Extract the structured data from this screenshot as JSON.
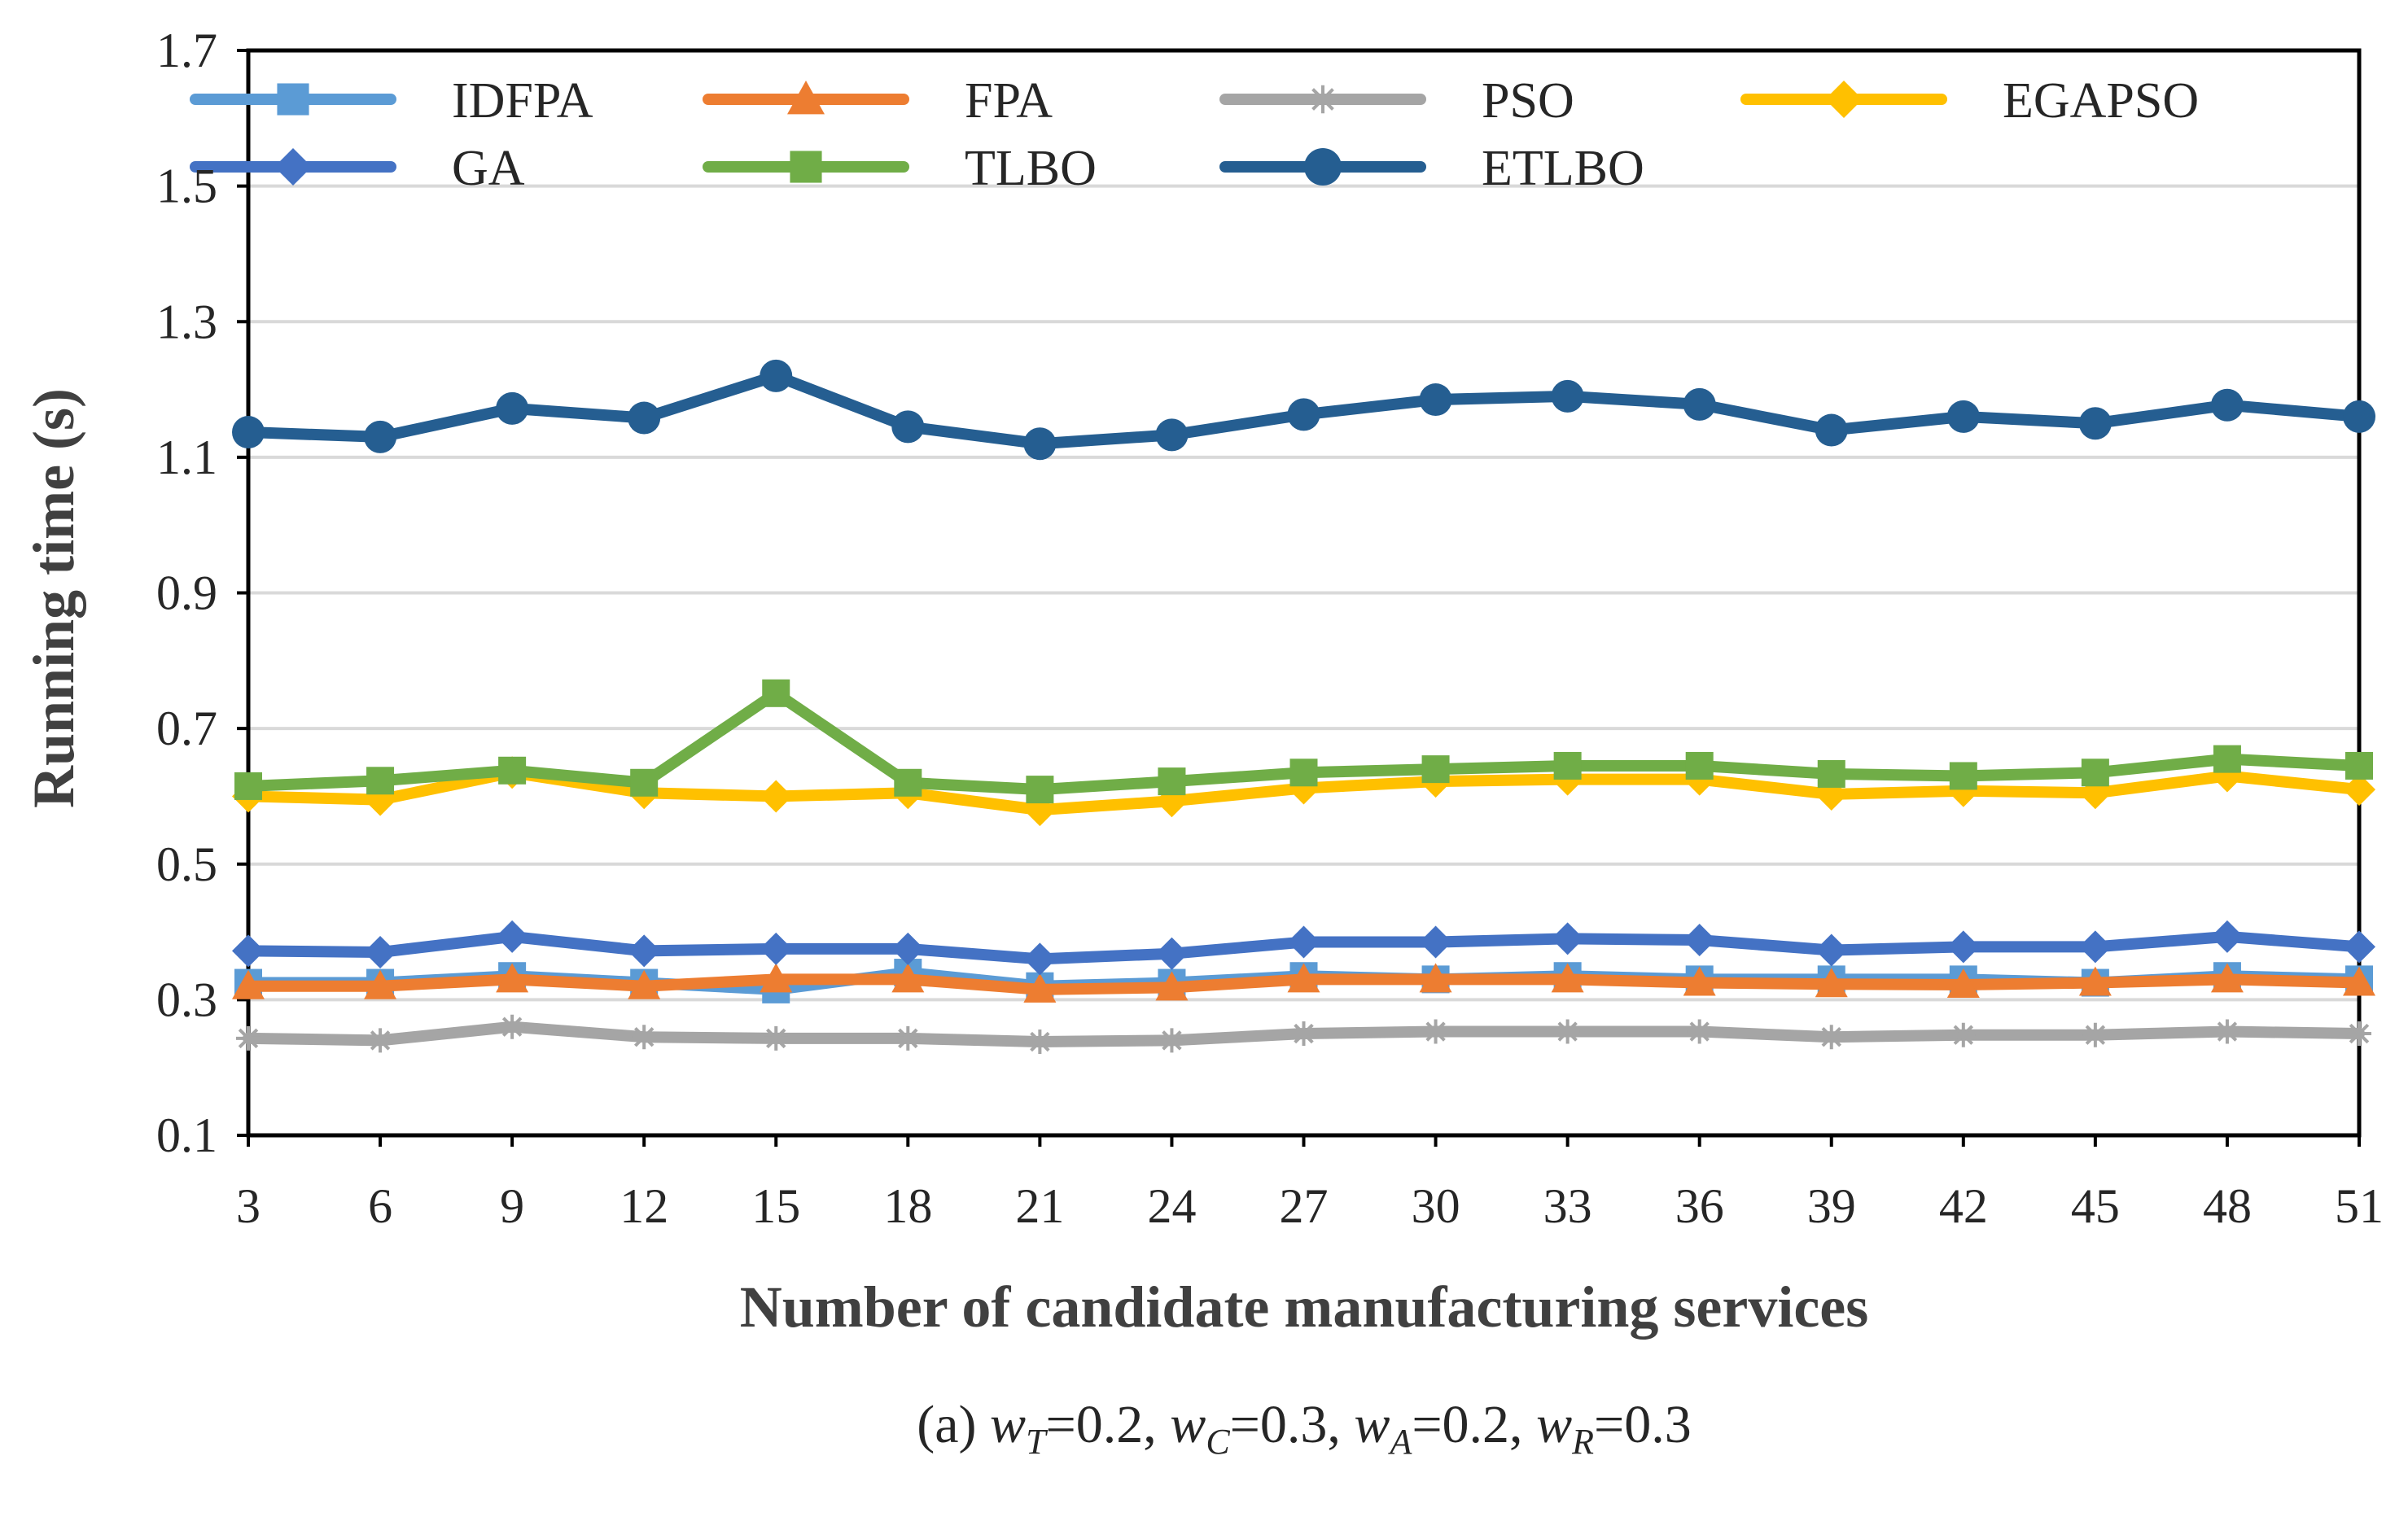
{
  "chart_data": {
    "type": "line",
    "title": "",
    "xlabel": "Number of candidate manufacturing services",
    "ylabel": "Running time (s)",
    "ylim": [
      0.1,
      1.7
    ],
    "yticks": [
      "0.1",
      "0.3",
      "0.5",
      "0.7",
      "0.9",
      "1.1",
      "1.3",
      "1.5",
      "1.7"
    ],
    "grid": true,
    "legend_position": "top",
    "x": [
      3,
      6,
      9,
      12,
      15,
      18,
      21,
      24,
      27,
      30,
      33,
      36,
      39,
      42,
      45,
      48,
      51
    ],
    "series": [
      {
        "name": "IDFPA",
        "color": "#5b9bd5",
        "marker": "square",
        "values": [
          0.325,
          0.325,
          0.335,
          0.325,
          0.315,
          0.34,
          0.32,
          0.325,
          0.335,
          0.33,
          0.335,
          0.33,
          0.33,
          0.33,
          0.325,
          0.335,
          0.33
        ]
      },
      {
        "name": "FPA",
        "color": "#ed7d31",
        "marker": "triangle",
        "values": [
          0.32,
          0.32,
          0.33,
          0.32,
          0.33,
          0.33,
          0.315,
          0.318,
          0.33,
          0.33,
          0.33,
          0.325,
          0.323,
          0.322,
          0.325,
          0.33,
          0.325
        ]
      },
      {
        "name": "PSO",
        "color": "#a5a5a5",
        "marker": "asterisk",
        "values": [
          0.243,
          0.24,
          0.26,
          0.245,
          0.243,
          0.243,
          0.238,
          0.24,
          0.25,
          0.253,
          0.253,
          0.253,
          0.245,
          0.248,
          0.248,
          0.253,
          0.25
        ]
      },
      {
        "name": "EGAPSO",
        "color": "#ffc000",
        "marker": "diamond",
        "values": [
          0.6,
          0.595,
          0.635,
          0.605,
          0.6,
          0.605,
          0.58,
          0.593,
          0.612,
          0.622,
          0.625,
          0.625,
          0.603,
          0.608,
          0.605,
          0.63,
          0.61
        ]
      },
      {
        "name": "GA",
        "color": "#4472c4",
        "marker": "diamond",
        "values": [
          0.372,
          0.37,
          0.393,
          0.372,
          0.375,
          0.375,
          0.36,
          0.368,
          0.385,
          0.385,
          0.39,
          0.388,
          0.373,
          0.378,
          0.378,
          0.393,
          0.378
        ]
      },
      {
        "name": "TLBO",
        "color": "#70ad47",
        "marker": "square",
        "values": [
          0.615,
          0.623,
          0.638,
          0.62,
          0.752,
          0.62,
          0.61,
          0.622,
          0.635,
          0.64,
          0.645,
          0.645,
          0.633,
          0.63,
          0.635,
          0.655,
          0.645
        ]
      },
      {
        "name": "ETLBO",
        "color": "#255e91",
        "marker": "circle",
        "values": [
          1.137,
          1.13,
          1.172,
          1.158,
          1.22,
          1.145,
          1.12,
          1.133,
          1.163,
          1.185,
          1.19,
          1.178,
          1.14,
          1.16,
          1.15,
          1.177,
          1.16
        ]
      }
    ],
    "caption": {
      "prefix": "(a) ",
      "terms": [
        {
          "var": "w",
          "sub": "T",
          "value": "=0.2",
          "sep": ", "
        },
        {
          "var": "w",
          "sub": "C",
          "value": "=0.3",
          "sep": ", "
        },
        {
          "var": "w",
          "sub": "A",
          "value": "=0.2",
          "sep": ", "
        },
        {
          "var": "w",
          "sub": "R",
          "value": "=0.3",
          "sep": ""
        }
      ]
    }
  }
}
